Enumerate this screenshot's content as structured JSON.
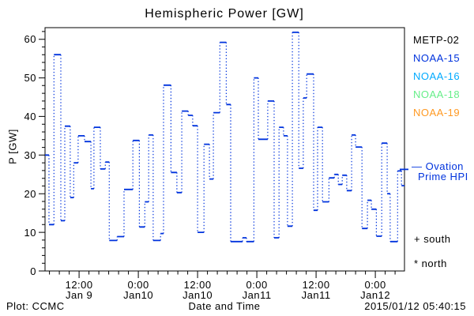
{
  "title": "Hemispheric Power [GW]",
  "xlabel": "Date and Time",
  "ylabel": "P [GW]",
  "footer": {
    "left": "Plot: CCMC",
    "right": "2015/01/12 05:40:15"
  },
  "legend": {
    "satellites": [
      {
        "label": "METP-02",
        "color": "#000000"
      },
      {
        "label": "NOAA-15",
        "color": "#0033dd"
      },
      {
        "label": "NOAA-16",
        "color": "#00aaff"
      },
      {
        "label": "NOAA-18",
        "color": "#66ee88"
      },
      {
        "label": "NOAA-19",
        "color": "#ff9922"
      }
    ]
  },
  "annotations": {
    "ovation_line1": "— Ovation",
    "ovation_line2": "Prime HPI",
    "ovation_color": "#0033dd",
    "south": "+ south",
    "north": "* north"
  },
  "chart_data": {
    "type": "line",
    "style": "step",
    "series_name": "Ovation Prime HPI",
    "title": "Hemispheric Power [GW]",
    "xlabel": "Date and Time",
    "ylabel": "P [GW]",
    "x_unit": "hours since 2015-01-09 00:00 UT",
    "x_range": [
      5.1,
      77.9
    ],
    "ylim": [
      0,
      63
    ],
    "grid": false,
    "legend_position": "right",
    "line_color": "#0033dd",
    "y_ticks": [
      0,
      10,
      20,
      30,
      40,
      50,
      60
    ],
    "y_minor_step": 2,
    "x_minor_step": 2,
    "x_minor_range": [
      6,
      76
    ],
    "x_major_ticks": [
      {
        "hour": 12,
        "time": "12:00",
        "date": "Jan 9"
      },
      {
        "hour": 24,
        "time": "0:00",
        "date": "Jan10"
      },
      {
        "hour": 36,
        "time": "12:00",
        "date": "Jan10"
      },
      {
        "hour": 48,
        "time": "0:00",
        "date": "Jan11"
      },
      {
        "hour": 60,
        "time": "12:00",
        "date": "Jan11"
      },
      {
        "hour": 72,
        "time": "0:00",
        "date": "Jan12"
      }
    ],
    "end_hour": 77.9,
    "hpi_edge_marker_value": 26.3,
    "steps": [
      [
        5.1,
        30
      ],
      [
        5.9,
        12
      ],
      [
        6.9,
        56
      ],
      [
        8.3,
        13
      ],
      [
        9.1,
        37.5
      ],
      [
        10.2,
        19
      ],
      [
        10.9,
        28
      ],
      [
        11.8,
        35
      ],
      [
        13.1,
        33.5
      ],
      [
        14.4,
        21.3
      ],
      [
        15.0,
        37.2
      ],
      [
        16.3,
        26.4
      ],
      [
        17.3,
        28.2
      ],
      [
        18.1,
        7.9
      ],
      [
        19.7,
        8.9
      ],
      [
        21.1,
        21.1
      ],
      [
        22.9,
        33.8
      ],
      [
        24.2,
        11.4
      ],
      [
        25.3,
        17.9
      ],
      [
        26.1,
        35.2
      ],
      [
        27.0,
        7.9
      ],
      [
        28.5,
        9.7
      ],
      [
        29.1,
        48.1
      ],
      [
        30.6,
        25.5
      ],
      [
        31.8,
        20.3
      ],
      [
        32.8,
        41.4
      ],
      [
        34.1,
        40.3
      ],
      [
        35.0,
        37.6
      ],
      [
        36.0,
        10.0
      ],
      [
        37.3,
        32.8
      ],
      [
        38.4,
        23.8
      ],
      [
        39.2,
        41.0
      ],
      [
        40.5,
        59.2
      ],
      [
        41.8,
        43.1
      ],
      [
        42.7,
        7.6
      ],
      [
        45.1,
        8.6
      ],
      [
        45.9,
        7.6
      ],
      [
        47.4,
        50.0
      ],
      [
        48.3,
        34.1
      ],
      [
        50.2,
        44.0
      ],
      [
        51.5,
        8.6
      ],
      [
        52.5,
        37.2
      ],
      [
        53.4,
        35.0
      ],
      [
        54.2,
        11.6
      ],
      [
        55.2,
        61.8
      ],
      [
        56.5,
        26.6
      ],
      [
        57.4,
        44.8
      ],
      [
        58.1,
        51.0
      ],
      [
        59.5,
        15.7
      ],
      [
        60.3,
        37.2
      ],
      [
        61.3,
        17.9
      ],
      [
        62.6,
        24.1
      ],
      [
        63.7,
        25.0
      ],
      [
        64.5,
        22.4
      ],
      [
        65.3,
        24.8
      ],
      [
        66.2,
        20.8
      ],
      [
        67.2,
        35.2
      ],
      [
        68.0,
        32.1
      ],
      [
        69.3,
        11.0
      ],
      [
        70.4,
        18.3
      ],
      [
        71.2,
        16.0
      ],
      [
        72.2,
        9.0
      ],
      [
        73.3,
        33.1
      ],
      [
        74.4,
        20.0
      ],
      [
        75.0,
        7.6
      ],
      [
        76.5,
        25.9
      ],
      [
        77.3,
        22.1
      ]
    ]
  }
}
